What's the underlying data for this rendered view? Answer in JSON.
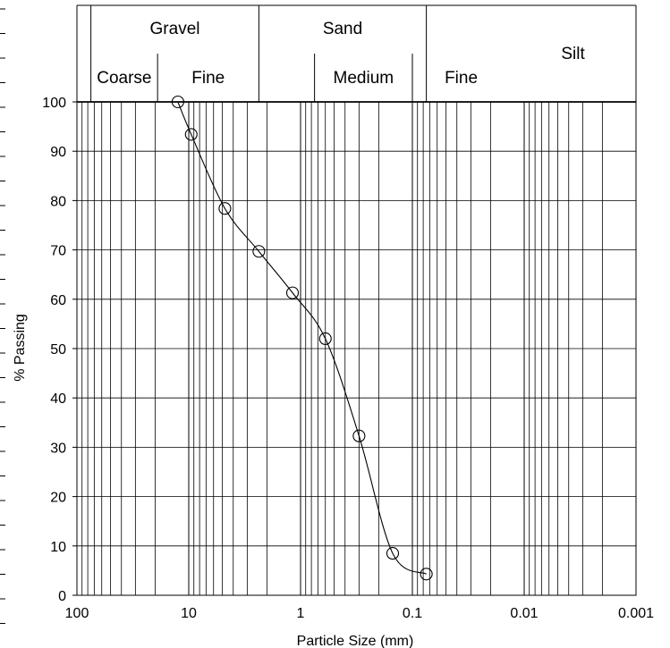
{
  "chart_data": {
    "type": "scatter",
    "title": "",
    "xlabel": "Particle Size (mm)",
    "ylabel": "% Passing",
    "x_scale": "log",
    "x_reversed": true,
    "xlim": [
      100,
      0.001
    ],
    "ylim": [
      0,
      100
    ],
    "x_ticks": [
      {
        "value": 100,
        "label": "100"
      },
      {
        "value": 10,
        "label": "10"
      },
      {
        "value": 1,
        "label": "1"
      },
      {
        "value": 0.1,
        "label": "0.1"
      },
      {
        "value": 0.01,
        "label": "0.01"
      },
      {
        "value": 0.001,
        "label": "0.001"
      }
    ],
    "y_ticks": [
      0,
      10,
      20,
      30,
      40,
      50,
      60,
      70,
      80,
      90,
      100
    ],
    "grid": true,
    "legend": "none",
    "marker": "open-circle",
    "curve": "smooth",
    "series": [
      {
        "x": [
          12.5,
          9.5,
          4.75,
          2.36,
          1.18,
          0.6,
          0.3,
          0.15,
          0.075
        ],
        "y": [
          100,
          93.4,
          78.4,
          69.7,
          61.3,
          52.0,
          32.3,
          8.5,
          4.3
        ]
      }
    ],
    "classification": {
      "groups": [
        {
          "label": "Gravel",
          "from": 75,
          "to": 2.36,
          "subs": [
            {
              "label": "Coarse",
              "from": 75,
              "to": 19
            },
            {
              "label": "Fine",
              "from": 19,
              "to": 2.36
            }
          ]
        },
        {
          "label": "Sand",
          "from": 2.36,
          "to": 0.075,
          "subs": [
            {
              "label": "",
              "from": 2.36,
              "to": 0.75
            },
            {
              "label": "Medium",
              "from": 0.75,
              "to": 0.1
            },
            {
              "label": "Fine",
              "from": 0.1,
              "to": 0.0134
            }
          ]
        },
        {
          "label": "Silt",
          "from": 0.0134,
          "to": 0.001,
          "subs": []
        }
      ]
    }
  }
}
